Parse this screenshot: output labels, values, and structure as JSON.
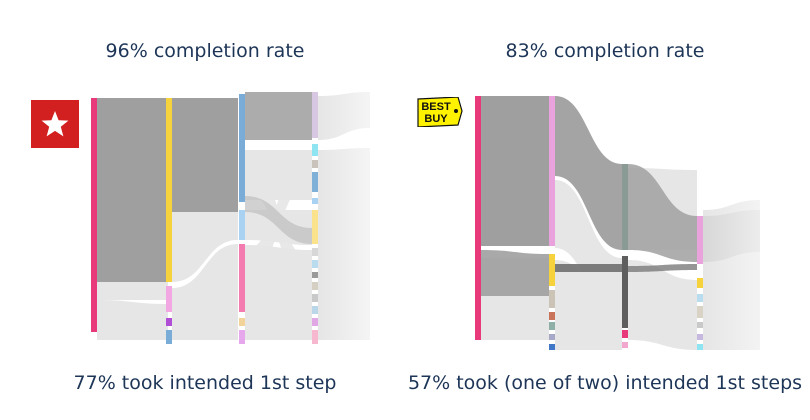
{
  "chart_data": [
    {
      "type": "sankey",
      "brand": "Macy's",
      "title": "96% completion rate",
      "caption": "77% took intended 1st step",
      "completion_rate_pct": 96,
      "intended_first_step_pct": 77,
      "colors": {
        "start": "#e8397a",
        "step1": "#f6d33c",
        "step2": "#79acd6",
        "link": "#9a9a9a",
        "faint": "#e6e6e6"
      }
    },
    {
      "type": "sankey",
      "brand": "Best Buy",
      "title": "83% completion rate",
      "caption": "57% took (one of two) intended 1st steps",
      "completion_rate_pct": 83,
      "intended_first_step_pct": 57,
      "colors": {
        "start": "#e8397a",
        "step1": "#eaa2dc",
        "step2": "#8a9a95",
        "link": "#9a9a9a",
        "faint": "#e6e6e6"
      }
    }
  ],
  "logos": {
    "left": {
      "icon": "star-icon",
      "color": "#d1201f"
    },
    "right": {
      "text": "BEST BUY",
      "icon": "best-buy-tag-icon",
      "color": "#fff200"
    }
  }
}
